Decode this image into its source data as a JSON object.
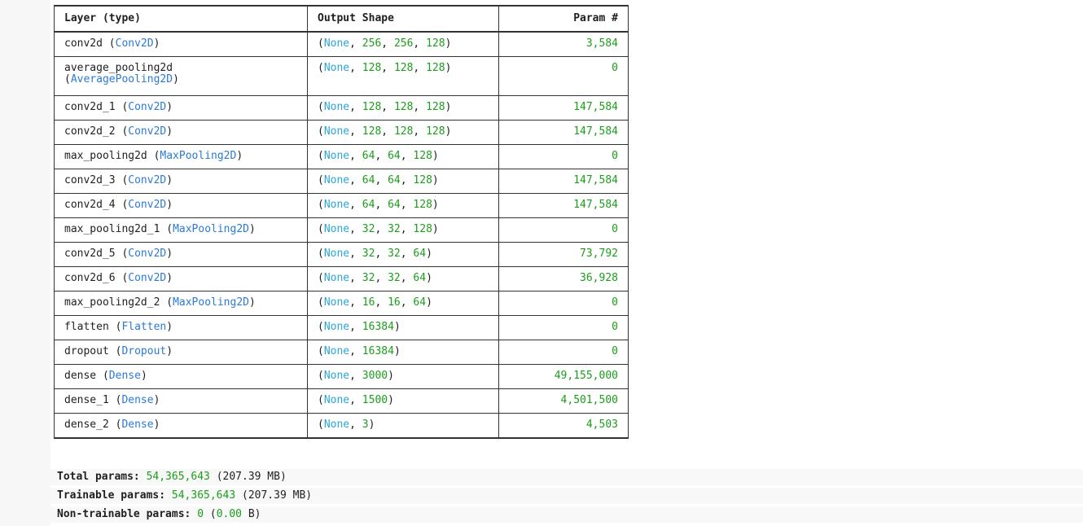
{
  "table": {
    "headers": {
      "layer": "Layer (type)",
      "shape": "Output Shape",
      "param": "Param #"
    },
    "rows": [
      {
        "name": "conv2d",
        "type": "Conv2D",
        "shape": [
          256,
          256,
          128
        ],
        "param": "3,584"
      },
      {
        "name": "average_pooling2d",
        "type": "AveragePooling2D",
        "shape": [
          128,
          128,
          128
        ],
        "param": "0",
        "wrap": true
      },
      {
        "name": "conv2d_1",
        "type": "Conv2D",
        "shape": [
          128,
          128,
          128
        ],
        "param": "147,584"
      },
      {
        "name": "conv2d_2",
        "type": "Conv2D",
        "shape": [
          128,
          128,
          128
        ],
        "param": "147,584"
      },
      {
        "name": "max_pooling2d",
        "type": "MaxPooling2D",
        "shape": [
          64,
          64,
          128
        ],
        "param": "0"
      },
      {
        "name": "conv2d_3",
        "type": "Conv2D",
        "shape": [
          64,
          64,
          128
        ],
        "param": "147,584"
      },
      {
        "name": "conv2d_4",
        "type": "Conv2D",
        "shape": [
          64,
          64,
          128
        ],
        "param": "147,584"
      },
      {
        "name": "max_pooling2d_1",
        "type": "MaxPooling2D",
        "shape": [
          32,
          32,
          128
        ],
        "param": "0"
      },
      {
        "name": "conv2d_5",
        "type": "Conv2D",
        "shape": [
          32,
          32,
          64
        ],
        "param": "73,792"
      },
      {
        "name": "conv2d_6",
        "type": "Conv2D",
        "shape": [
          32,
          32,
          64
        ],
        "param": "36,928"
      },
      {
        "name": "max_pooling2d_2",
        "type": "MaxPooling2D",
        "shape": [
          16,
          16,
          64
        ],
        "param": "0"
      },
      {
        "name": "flatten",
        "type": "Flatten",
        "shape": [
          16384
        ],
        "param": "0"
      },
      {
        "name": "dropout",
        "type": "Dropout",
        "shape": [
          16384
        ],
        "param": "0"
      },
      {
        "name": "dense",
        "type": "Dense",
        "shape": [
          3000
        ],
        "param": "49,155,000"
      },
      {
        "name": "dense_1",
        "type": "Dense",
        "shape": [
          1500
        ],
        "param": "4,501,500"
      },
      {
        "name": "dense_2",
        "type": "Dense",
        "shape": [
          3
        ],
        "param": "4,503"
      }
    ]
  },
  "totals": {
    "total": {
      "label": "Total params:",
      "value": "54,365,643",
      "memory": "(207.39 MB)"
    },
    "trainable": {
      "label": "Trainable params:",
      "value": "54,365,643",
      "memory": "(207.39 MB)"
    },
    "non_trainable": {
      "label": "Non-trainable params:",
      "value": "0",
      "memory_prefix": "(",
      "memory_value": "0.00",
      "memory_suffix": " B)"
    }
  },
  "colors": {
    "number": "#1a9e1a",
    "type": "#2a7ad6",
    "none_keyword": "#2aa7d6",
    "text": "#1f1f1f",
    "border": "#333333"
  },
  "none_keyword": "None"
}
